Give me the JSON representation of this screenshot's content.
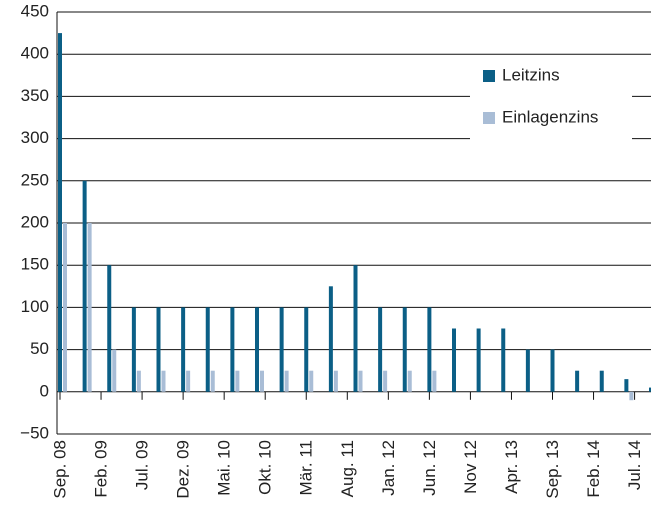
{
  "chart_data": {
    "type": "bar",
    "x": [
      "2008-09",
      "2008-12",
      "2009-03",
      "2009-06",
      "2009-09",
      "2009-12",
      "2010-03",
      "2010-06",
      "2010-09",
      "2010-12",
      "2011-03",
      "2011-06",
      "2011-09",
      "2011-12",
      "2012-03",
      "2012-06",
      "2012-09",
      "2012-12",
      "2013-03",
      "2013-06",
      "2013-09",
      "2013-12",
      "2014-03",
      "2014-06",
      "2014-09"
    ],
    "series": [
      {
        "name": "Leitzins",
        "color": "#0b5f86",
        "values": [
          425,
          250,
          150,
          100,
          100,
          100,
          100,
          100,
          100,
          100,
          100,
          125,
          150,
          100,
          100,
          100,
          75,
          75,
          75,
          50,
          50,
          25,
          25,
          15,
          5
        ]
      },
      {
        "name": "Einlagenzins",
        "color": "#a9bdd6",
        "values": [
          200,
          200,
          50,
          25,
          25,
          25,
          25,
          25,
          25,
          25,
          25,
          25,
          25,
          25,
          25,
          25,
          0,
          0,
          0,
          0,
          0,
          0,
          0,
          -10,
          -20
        ]
      }
    ],
    "xlim": [
      "2008-09",
      "2014-09"
    ],
    "xticks": [
      {
        "value": "2008-09",
        "label": "Sep. 08"
      },
      {
        "value": "2009-02",
        "label": "Feb. 09"
      },
      {
        "value": "2009-07",
        "label": "Jul. 09"
      },
      {
        "value": "2009-12",
        "label": "Dez. 09"
      },
      {
        "value": "2010-05",
        "label": "Mai. 10"
      },
      {
        "value": "2010-10",
        "label": "Okt. 10"
      },
      {
        "value": "2011-03",
        "label": "Mär. 11"
      },
      {
        "value": "2011-08",
        "label": "Aug. 11"
      },
      {
        "value": "2012-01",
        "label": "Jan. 12"
      },
      {
        "value": "2012-06",
        "label": "Jun. 12"
      },
      {
        "value": "2012-11",
        "label": "Nov 12"
      },
      {
        "value": "2013-04",
        "label": "Apr. 13"
      },
      {
        "value": "2013-09",
        "label": "Sep. 13"
      },
      {
        "value": "2014-02",
        "label": "Feb. 14"
      },
      {
        "value": "2014-07",
        "label": "Jul. 14"
      }
    ],
    "ylim": [
      -50,
      450
    ],
    "yticks": [
      {
        "value": -50,
        "label": "−50"
      },
      0,
      50,
      100,
      150,
      200,
      250,
      300,
      350,
      400,
      450
    ],
    "grid": true,
    "legend": "upper right"
  }
}
